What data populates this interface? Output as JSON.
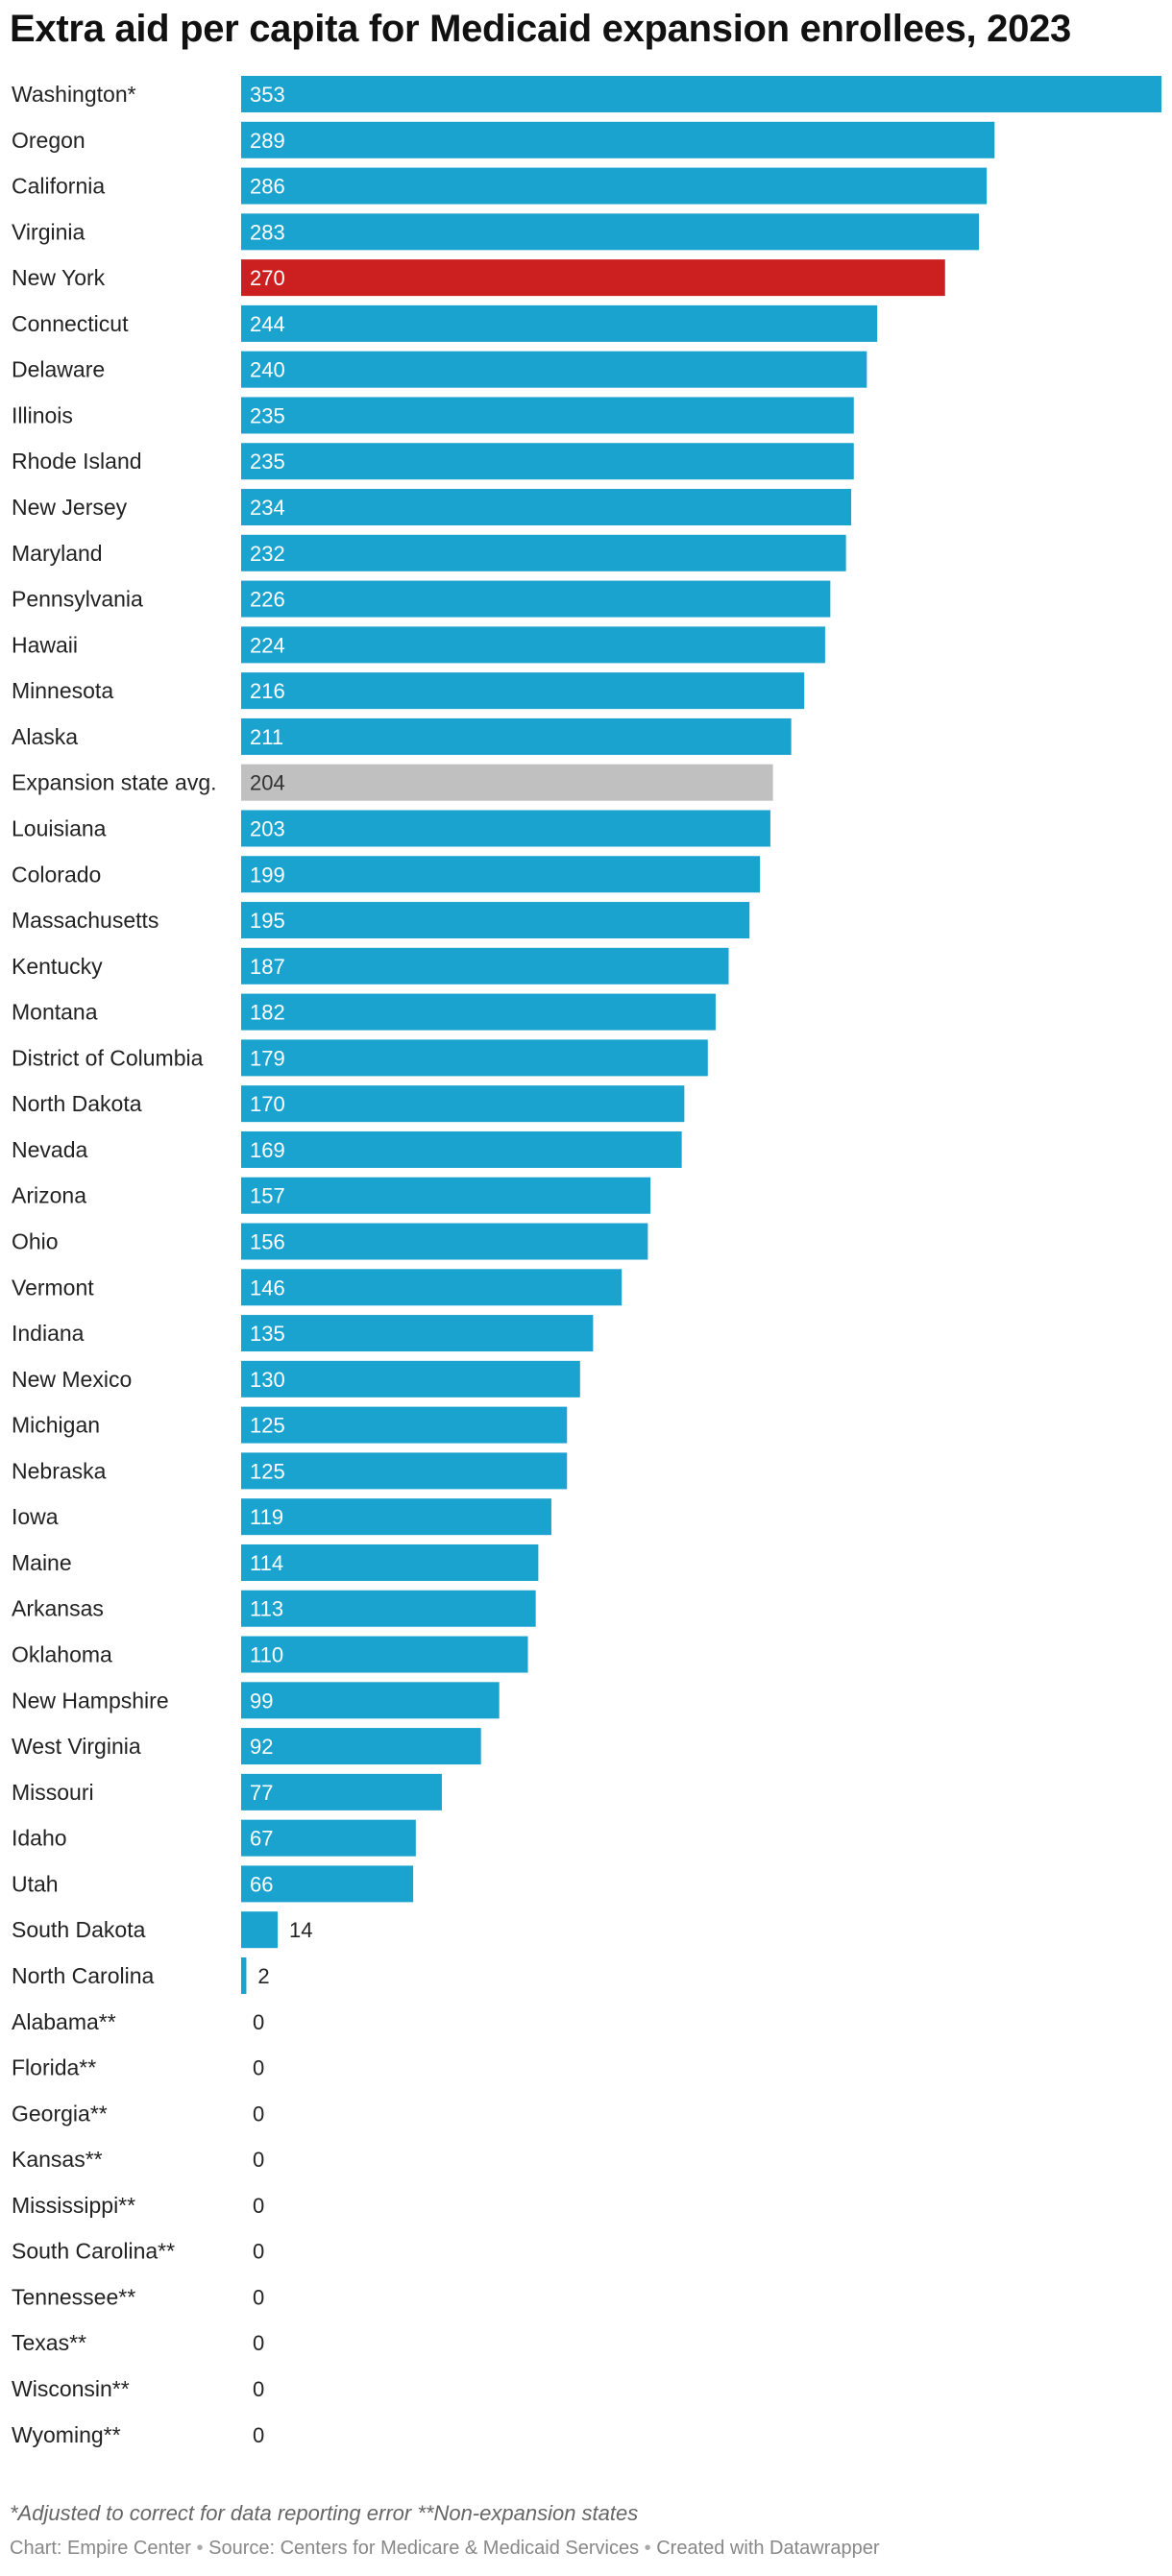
{
  "chart_data": {
    "type": "bar",
    "orientation": "horizontal",
    "title": "Extra aid per capita for Medicaid expansion enrollees, 2023",
    "xlim": [
      0,
      353
    ],
    "grid": false,
    "legend": "none",
    "colors": {
      "default": "#1aa3cf",
      "highlight": "#cc1f1f",
      "average": "#c0c0c0"
    },
    "categories": [
      "Washington*",
      "Oregon",
      "California",
      "Virginia",
      "New York",
      "Connecticut",
      "Delaware",
      "Illinois",
      "Rhode Island",
      "New Jersey",
      "Maryland",
      "Pennsylvania",
      "Hawaii",
      "Minnesota",
      "Alaska",
      "Expansion state avg.",
      "Louisiana",
      "Colorado",
      "Massachusetts",
      "Kentucky",
      "Montana",
      "District of Columbia",
      "North Dakota",
      "Nevada",
      "Arizona",
      "Ohio",
      "Vermont",
      "Indiana",
      "New Mexico",
      "Michigan",
      "Nebraska",
      "Iowa",
      "Maine",
      "Arkansas",
      "Oklahoma",
      "New Hampshire",
      "West Virginia",
      "Missouri",
      "Idaho",
      "Utah",
      "South Dakota",
      "North Carolina",
      "Alabama**",
      "Florida**",
      "Georgia**",
      "Kansas**",
      "Mississippi**",
      "South Carolina**",
      "Tennessee**",
      "Texas**",
      "Wisconsin**",
      "Wyoming**"
    ],
    "values": [
      353,
      289,
      286,
      283,
      270,
      244,
      240,
      235,
      235,
      234,
      232,
      226,
      224,
      216,
      211,
      204,
      203,
      199,
      195,
      187,
      182,
      179,
      170,
      169,
      157,
      156,
      146,
      135,
      130,
      125,
      125,
      119,
      114,
      113,
      110,
      99,
      92,
      77,
      67,
      66,
      14,
      2,
      0,
      0,
      0,
      0,
      0,
      0,
      0,
      0,
      0,
      0
    ],
    "highlight": "New York",
    "average_category": "Expansion state avg."
  },
  "footer": {
    "note": "*Adjusted to correct for data reporting error **Non-expansion states",
    "credit_chart": "Chart: Empire Center",
    "credit_source": "Source: Centers for Medicare & Medicaid Services",
    "credit_tool": "Created with Datawrapper",
    "separator": "•"
  }
}
